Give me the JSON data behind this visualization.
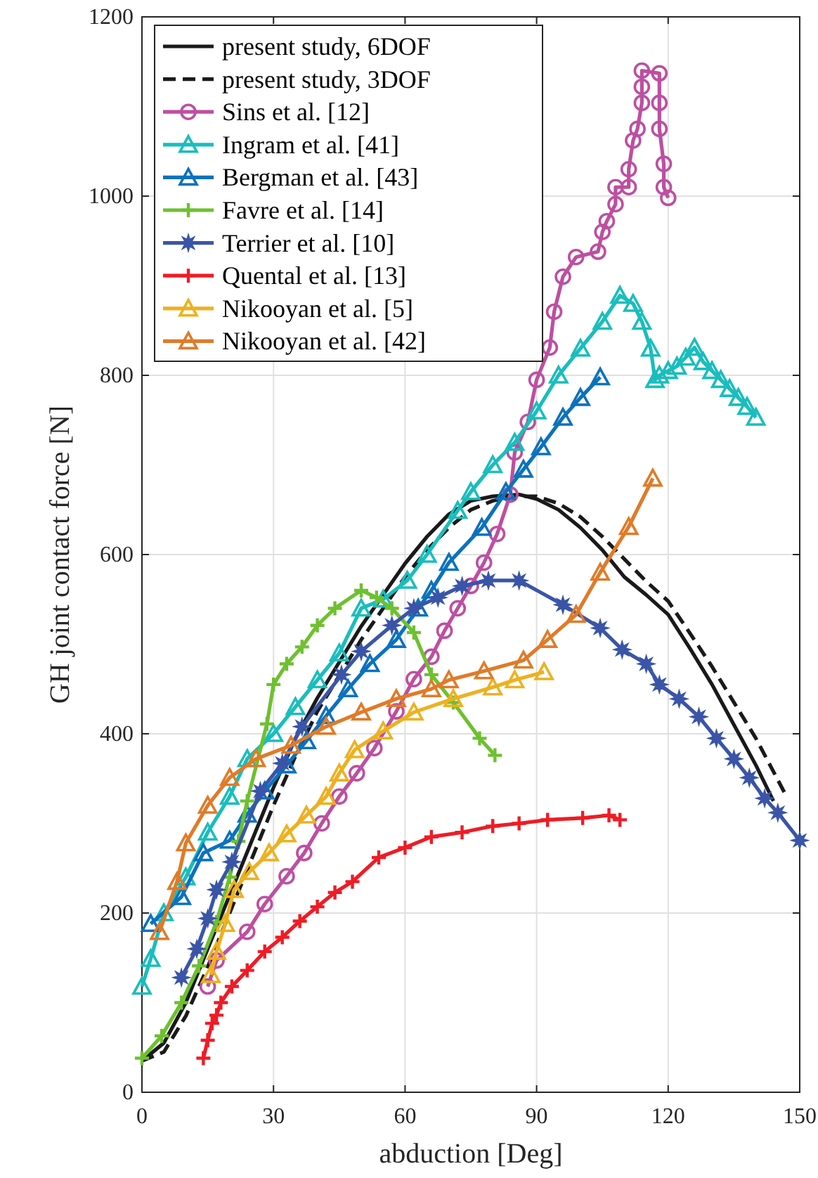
{
  "chart_data": {
    "type": "line",
    "xlabel": "abduction [Deg]",
    "ylabel": "GH joint contact force [N]",
    "xlim": [
      0,
      150
    ],
    "ylim": [
      0,
      1200
    ],
    "xticks": [
      0,
      30,
      60,
      90,
      120,
      150
    ],
    "yticks": [
      0,
      200,
      400,
      600,
      800,
      1000,
      1200
    ],
    "grid": true,
    "legend": "top left",
    "series": [
      {
        "name": "present study, 6DOF",
        "color": "#1a1a1a",
        "marker": "none",
        "line_style": "solid",
        "x": [
          0,
          5,
          10,
          15,
          20,
          25,
          30,
          35,
          40,
          45,
          50,
          55,
          60,
          65,
          70,
          75,
          80,
          86,
          90,
          95,
          100,
          105,
          110,
          115,
          120,
          125,
          130,
          135,
          140,
          144
        ],
        "values": [
          35,
          55,
          100,
          160,
          220,
          280,
          340,
          395,
          440,
          480,
          520,
          555,
          590,
          620,
          645,
          660,
          665,
          667,
          662,
          650,
          630,
          605,
          575,
          555,
          533,
          495,
          455,
          410,
          365,
          325
        ]
      },
      {
        "name": "present study, 3DOF",
        "color": "#1a1a1a",
        "marker": "none",
        "line_style": "dashed",
        "x": [
          0,
          5,
          10,
          15,
          20,
          25,
          30,
          35,
          40,
          45,
          50,
          55,
          60,
          65,
          70,
          75,
          80,
          85,
          90,
          95,
          100,
          105,
          110,
          115,
          120,
          125,
          130,
          135,
          140,
          147
        ],
        "values": [
          35,
          45,
          85,
          140,
          200,
          260,
          320,
          375,
          425,
          465,
          505,
          540,
          575,
          605,
          630,
          650,
          660,
          665,
          665,
          657,
          642,
          620,
          595,
          570,
          548,
          512,
          475,
          435,
          395,
          330
        ]
      },
      {
        "name": "Sins et al. [12]",
        "color": "#bd4fa1",
        "marker": "circle",
        "line_style": "solid",
        "x": [
          15,
          17,
          24,
          28,
          33,
          37,
          41,
          45,
          49,
          53,
          58,
          62,
          66,
          69,
          72,
          75,
          78,
          81,
          84,
          85,
          88,
          90,
          93,
          94,
          96,
          99,
          104,
          105,
          106,
          108,
          108,
          111,
          111,
          112,
          113,
          114,
          114,
          114,
          118,
          118,
          118,
          119,
          119,
          120
        ],
        "values": [
          118,
          147,
          179,
          210,
          241,
          267,
          300,
          330,
          356,
          384,
          425,
          461,
          486,
          515,
          540,
          565,
          591,
          623,
          667,
          714,
          748,
          795,
          831,
          871,
          910,
          932,
          938,
          960,
          972,
          991,
          1010,
          1010,
          1030,
          1062,
          1075,
          1104,
          1122,
          1140,
          1137,
          1104,
          1075,
          1036,
          1010,
          998
        ]
      },
      {
        "name": "Ingram et al. [41]",
        "color": "#1abdbd",
        "marker": "triangle",
        "line_style": "solid",
        "x": [
          0,
          2,
          5,
          10,
          15,
          20,
          24,
          30,
          35,
          40,
          45,
          50,
          55,
          60.5,
          65,
          72,
          75,
          80,
          85,
          90,
          95,
          100,
          105,
          109,
          112,
          114,
          116,
          117,
          118,
          120,
          122,
          124,
          126,
          128,
          130,
          132,
          134,
          136,
          138,
          140
        ],
        "values": [
          118,
          149,
          200,
          240,
          290,
          330,
          372,
          400,
          430,
          460,
          490,
          540,
          550,
          571,
          600,
          649,
          670,
          700,
          725,
          760,
          800,
          830,
          860,
          889,
          880,
          860,
          830,
          795,
          800,
          805,
          810,
          820,
          831,
          815,
          805,
          795,
          785,
          775,
          765,
          753
        ]
      },
      {
        "name": "Bergman et al. [43]",
        "color": "#0b72bd",
        "marker": "triangle",
        "line_style": "solid",
        "x": [
          2,
          9,
          14,
          20,
          24,
          28,
          33,
          37.5,
          42,
          47,
          52,
          58,
          63,
          66,
          70,
          77.5,
          83,
          87,
          91,
          96,
          100,
          104.5
        ],
        "values": [
          188,
          218,
          267,
          281,
          310,
          336,
          365,
          392,
          420,
          450,
          478,
          505,
          540,
          560,
          591,
          630,
          670,
          695,
          720,
          753,
          775,
          798
        ]
      },
      {
        "name": "Favre et al. [14]",
        "color": "#6ec030",
        "marker": "cross",
        "line_style": "solid",
        "x": [
          0,
          4.5,
          9,
          13,
          17,
          20,
          22,
          24,
          28.5,
          30,
          33,
          36.5,
          40,
          44,
          50,
          53.5,
          57,
          62,
          66,
          71,
          77,
          80.5
        ],
        "values": [
          38,
          63,
          100,
          141,
          190,
          240,
          280,
          325,
          411,
          455,
          478,
          497,
          521,
          540,
          560,
          552,
          540,
          513,
          466,
          435,
          395,
          376
        ]
      },
      {
        "name": "Terrier et al. [10]",
        "color": "#3a55a8",
        "marker": "star",
        "line_style": "solid",
        "x": [
          9,
          12.5,
          15,
          17,
          20.5,
          27,
          32,
          36.5,
          45.5,
          50,
          57,
          62,
          67.5,
          73,
          79,
          86,
          96,
          104.5,
          109.5,
          115,
          118,
          122.5,
          127,
          131,
          135,
          138.5,
          142,
          145,
          150
        ],
        "values": [
          128,
          160,
          194,
          226,
          257,
          336,
          367,
          408,
          466,
          492,
          521,
          540,
          552,
          565,
          571,
          571,
          544,
          518,
          494,
          478,
          455,
          439,
          419,
          395,
          372,
          351,
          328,
          312,
          281
        ]
      },
      {
        "name": "Quental et al. [13]",
        "color": "#ee1c25",
        "marker": "cross",
        "line_style": "solid",
        "x": [
          14,
          15,
          16,
          17,
          18,
          20.5,
          24,
          28,
          32,
          36,
          40,
          44,
          48,
          54,
          60,
          66,
          73,
          80,
          86,
          92.5,
          100.5,
          106.5,
          109
        ],
        "values": [
          38,
          58,
          77,
          86,
          100,
          118,
          136,
          157,
          173,
          191,
          207,
          223,
          235,
          262,
          273,
          285,
          290,
          297,
          300,
          304,
          306,
          309,
          304
        ]
      },
      {
        "name": "Nikooyan et al. [5]",
        "color": "#edb120",
        "marker": "triangle",
        "line_style": "solid",
        "x": [
          15.7,
          17,
          19,
          21,
          24.5,
          29,
          33,
          37.5,
          42,
          45,
          48.5,
          55,
          62,
          71,
          80,
          85,
          91.7
        ],
        "values": [
          131,
          157,
          188,
          226,
          246,
          267,
          288,
          309,
          330,
          356,
          382,
          403,
          424,
          439,
          452,
          460,
          469
        ]
      },
      {
        "name": "Nikooyan et al. [42]",
        "color": "#e07b28",
        "marker": "triangle",
        "line_style": "solid",
        "x": [
          4,
          8,
          10,
          15,
          20,
          26,
          34,
          42,
          50,
          58,
          66,
          70,
          78,
          87,
          92.5,
          99,
          104.5,
          111,
          116.5
        ],
        "values": [
          179,
          235,
          278,
          320,
          351,
          372,
          387,
          408,
          424,
          439,
          450,
          460,
          470,
          482,
          505,
          533,
          580,
          631,
          685
        ]
      }
    ]
  }
}
